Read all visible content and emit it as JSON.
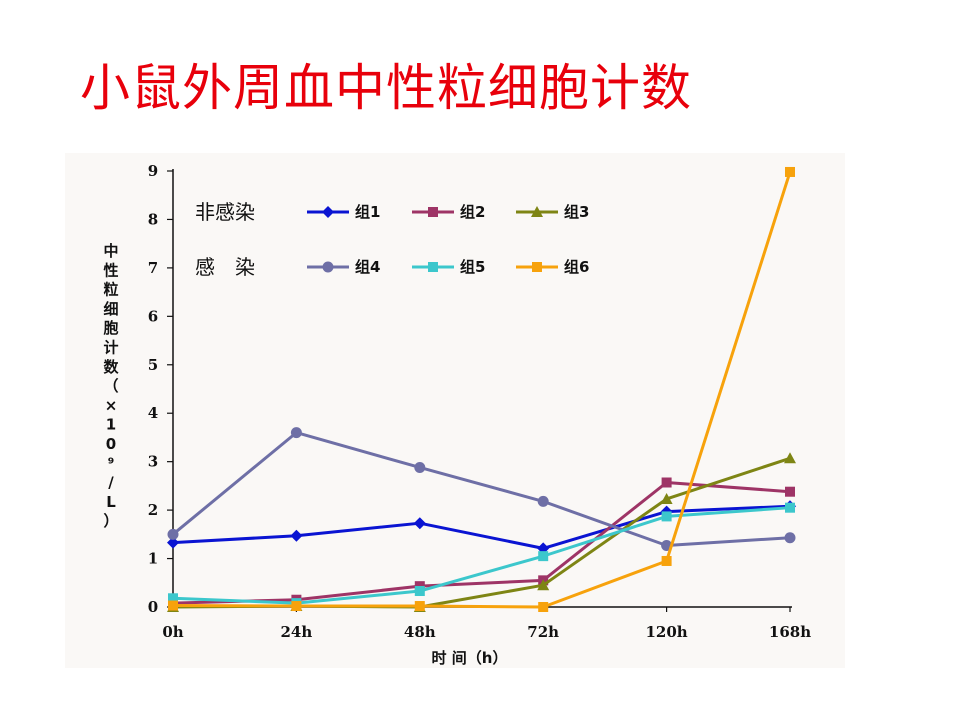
{
  "title": "小鼠外周血中性粒细胞计数",
  "chart_data": {
    "type": "line",
    "categories": [
      "0h",
      "24h",
      "48h",
      "72h",
      "120h",
      "168h"
    ],
    "xlabel": "时 间（h）",
    "ylabel": "中性粒细胞计数（×10⁹/L）",
    "ylabel_chars": [
      "中",
      "性",
      "粒",
      "细",
      "胞",
      "计",
      "数",
      "（",
      "×",
      "1",
      "0",
      "⁹",
      "/",
      "L",
      "）"
    ],
    "ylim": [
      0,
      9
    ],
    "yticks": [
      0,
      1,
      2,
      3,
      4,
      5,
      6,
      7,
      8,
      9
    ],
    "grid": false,
    "legend_position": "top-left",
    "legend_groups": [
      {
        "label": "非感染",
        "series": [
          0,
          1,
          2
        ]
      },
      {
        "label": "感　染",
        "series": [
          3,
          4,
          5
        ]
      }
    ],
    "series": [
      {
        "name": "组1",
        "color": "#0a14d2",
        "marker": "diamond",
        "values": [
          1.33,
          1.47,
          1.73,
          1.21,
          1.97,
          2.08
        ]
      },
      {
        "name": "组2",
        "color": "#9e3466",
        "marker": "square",
        "values": [
          0.08,
          0.15,
          0.43,
          0.55,
          2.57,
          2.38
        ]
      },
      {
        "name": "组3",
        "color": "#7e8514",
        "marker": "triangle",
        "values": [
          0.0,
          0.02,
          0.0,
          0.45,
          2.23,
          3.07
        ]
      },
      {
        "name": "组4",
        "color": "#6e6fa6",
        "marker": "circle",
        "values": [
          1.5,
          3.6,
          2.88,
          2.18,
          1.27,
          1.43
        ]
      },
      {
        "name": "组5",
        "color": "#3cc7cc",
        "marker": "square",
        "values": [
          0.18,
          0.08,
          0.33,
          1.05,
          1.87,
          2.05
        ]
      },
      {
        "name": "组6",
        "color": "#f7a20c",
        "marker": "square",
        "values": [
          0.03,
          0.02,
          0.02,
          0.0,
          0.95,
          8.98
        ]
      }
    ]
  }
}
